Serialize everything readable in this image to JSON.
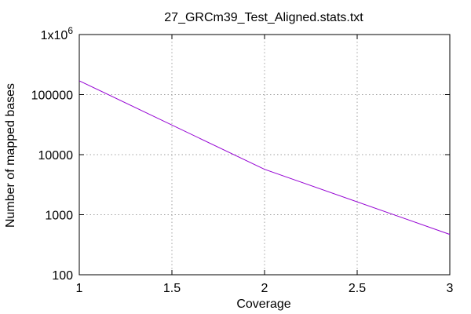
{
  "chart_data": {
    "type": "line",
    "title": "27_GRCm39_Test_Aligned.stats.txt",
    "xlabel": "Coverage",
    "ylabel": "Number of mapped bases",
    "x_scale": "linear",
    "y_scale": "log",
    "xlim": [
      1,
      3
    ],
    "ylim": [
      100,
      1000000
    ],
    "grid": true,
    "x_ticks": [
      {
        "value": 1,
        "label": "1"
      },
      {
        "value": 1.5,
        "label": "1.5"
      },
      {
        "value": 2,
        "label": "2"
      },
      {
        "value": 2.5,
        "label": "2.5"
      },
      {
        "value": 3,
        "label": "3"
      }
    ],
    "y_ticks": [
      {
        "value": 100,
        "label": "100"
      },
      {
        "value": 1000,
        "label": "1000"
      },
      {
        "value": 10000,
        "label": "10000"
      },
      {
        "value": 100000,
        "label": "100000"
      },
      {
        "value": 1000000,
        "label": "1x10",
        "sup": "6"
      }
    ],
    "series": [
      {
        "color": "#9400d3",
        "x": [
          1,
          2,
          3
        ],
        "y": [
          170000,
          5700,
          470
        ]
      }
    ]
  }
}
